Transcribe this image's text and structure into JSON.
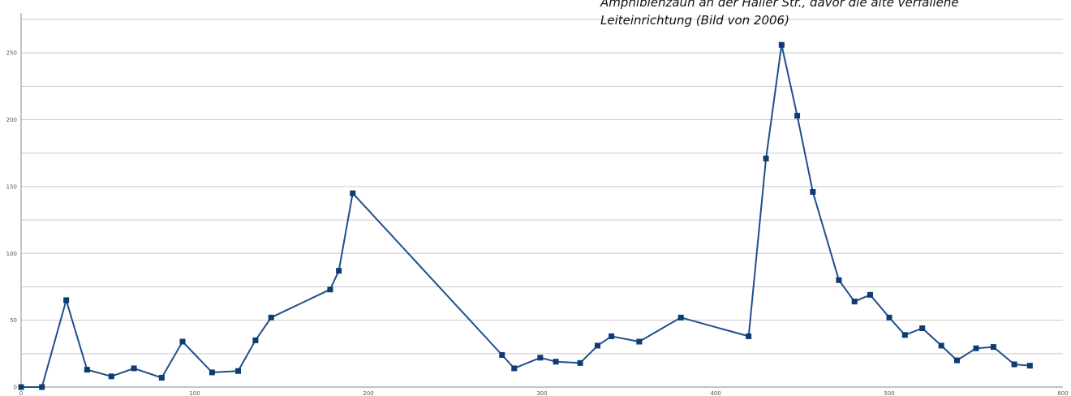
{
  "caption": "Amphibienzaun an der Haller Str., davor die alte verfallene\nLeiteinrichtung (Bild von 2006)",
  "chart_data": {
    "type": "line",
    "title": "",
    "xlabel": "",
    "ylabel": "",
    "xlim": [
      0,
      600
    ],
    "ylim": [
      0,
      275
    ],
    "xticks": [
      0,
      100,
      200,
      300,
      400,
      500,
      600
    ],
    "yticks": [
      0,
      50,
      100,
      150,
      200,
      250
    ],
    "grid": true,
    "colors": {
      "line": "#1f4e8c",
      "marker": "#0d3b73",
      "grid": "#c8c8c8",
      "axis": "#888888"
    },
    "series": [
      {
        "marker": "square",
        "points": [
          [
            0,
            0
          ],
          [
            12,
            0
          ],
          [
            26,
            65
          ],
          [
            38,
            13
          ],
          [
            52,
            8
          ],
          [
            65,
            14
          ],
          [
            81,
            7
          ],
          [
            93,
            34
          ],
          [
            110,
            11
          ],
          [
            125,
            12
          ],
          [
            135,
            35
          ],
          [
            144,
            52
          ],
          [
            178,
            73
          ],
          [
            183,
            87
          ],
          [
            191,
            145
          ],
          [
            277,
            24
          ],
          [
            284,
            14
          ],
          [
            299,
            22
          ],
          [
            308,
            19
          ],
          [
            322,
            18
          ],
          [
            332,
            31
          ],
          [
            340,
            38
          ],
          [
            356,
            34
          ],
          [
            380,
            52
          ],
          [
            419,
            38
          ],
          [
            429,
            171
          ],
          [
            438,
            256
          ],
          [
            447,
            203
          ],
          [
            456,
            146
          ],
          [
            471,
            80
          ],
          [
            480,
            64
          ],
          [
            489,
            69
          ],
          [
            500,
            52
          ],
          [
            509,
            39
          ],
          [
            519,
            44
          ],
          [
            530,
            31
          ],
          [
            539,
            20
          ],
          [
            550,
            29
          ],
          [
            560,
            30
          ],
          [
            572,
            17
          ],
          [
            581,
            16
          ]
        ]
      }
    ]
  }
}
